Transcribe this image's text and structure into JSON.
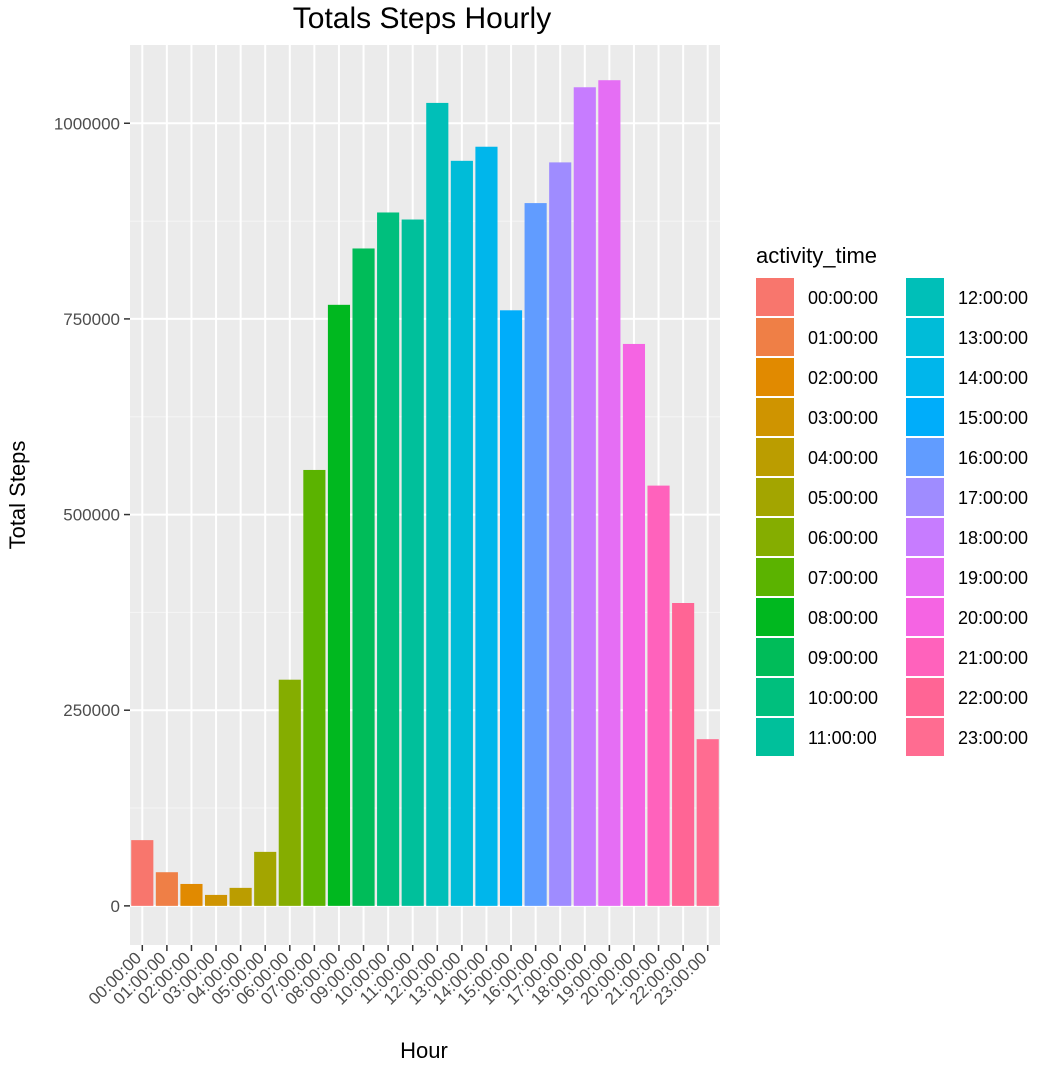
{
  "chart_data": {
    "type": "bar",
    "title": "Totals Steps Hourly",
    "xlabel": "Hour",
    "ylabel": "Total Steps",
    "legend_title": "activity_time",
    "legend_position": "right",
    "grid": true,
    "ylim": [
      -50000,
      1100000
    ],
    "yticks": [
      0,
      250000,
      500000,
      750000,
      1000000
    ],
    "ytick_labels": [
      "0",
      "250000",
      "500000",
      "750000",
      "1000000"
    ],
    "categories": [
      "00:00:00",
      "01:00:00",
      "02:00:00",
      "03:00:00",
      "04:00:00",
      "05:00:00",
      "06:00:00",
      "07:00:00",
      "08:00:00",
      "09:00:00",
      "10:00:00",
      "11:00:00",
      "12:00:00",
      "13:00:00",
      "14:00:00",
      "15:00:00",
      "16:00:00",
      "17:00:00",
      "18:00:00",
      "19:00:00",
      "20:00:00",
      "21:00:00",
      "22:00:00",
      "23:00:00"
    ],
    "values": [
      84000,
      43000,
      28000,
      14000,
      23000,
      69000,
      289000,
      557000,
      768000,
      840000,
      886000,
      877000,
      1026000,
      952000,
      970000,
      761000,
      898000,
      950000,
      1046000,
      1055000,
      718000,
      537000,
      387000,
      213000
    ],
    "colors": [
      "#F8766D",
      "#EF7F46",
      "#E18A00",
      "#CF9400",
      "#BB9D00",
      "#A3A500",
      "#85AD00",
      "#5BB300",
      "#00B81F",
      "#00BC59",
      "#00BF7D",
      "#00C09B",
      "#00BFB8",
      "#00BCD8",
      "#00B6EB",
      "#00ADFA",
      "#619CFF",
      "#9F8CFF",
      "#C77CFF",
      "#E56EF4",
      "#F564E3",
      "#FF62BC",
      "#FF6595",
      "#FF6C91"
    ]
  }
}
